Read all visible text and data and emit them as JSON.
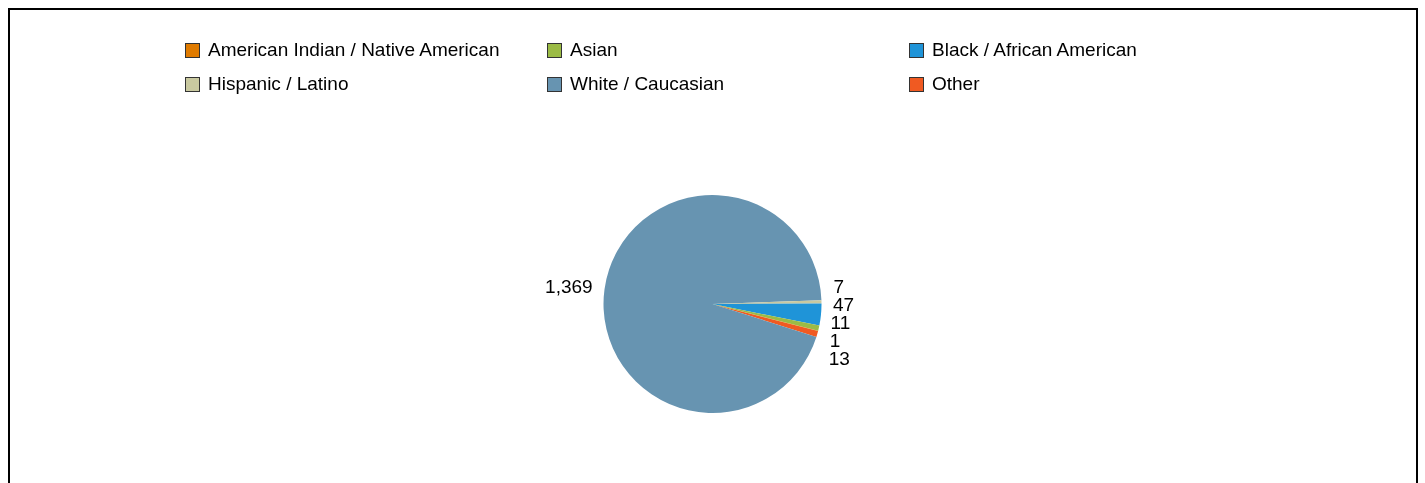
{
  "chart_data": {
    "type": "pie",
    "categories": [
      "American Indian / Native American",
      "Asian",
      "Black / African American",
      "Hispanic / Latino",
      "White / Caucasian",
      "Other"
    ],
    "values": [
      1,
      11,
      47,
      7,
      1369,
      13
    ],
    "colors": [
      "#e07b00",
      "#9bbb45",
      "#1f94d8",
      "#c9c9a0",
      "#6794b1",
      "#f05a22"
    ],
    "value_labels": [
      "1",
      "11",
      "47",
      "7",
      "1,369",
      "13"
    ],
    "legend": "top"
  }
}
